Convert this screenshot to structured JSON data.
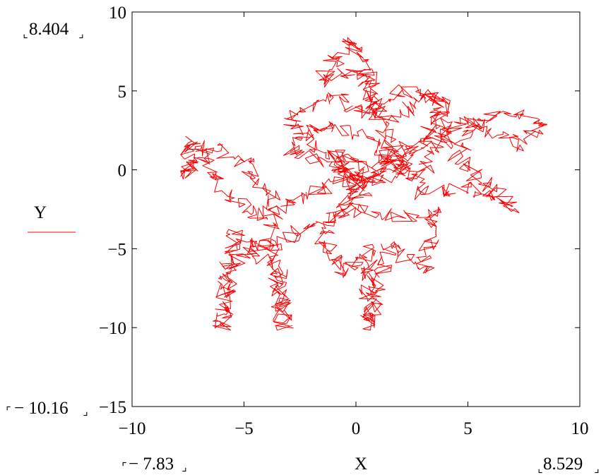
{
  "chart_data": {
    "type": "line",
    "xlabel": "X",
    "ylabel": "Y",
    "xlim": [
      -10,
      10
    ],
    "ylim": [
      -15,
      10
    ],
    "x_ticks": [
      -10,
      -5,
      0,
      5,
      10
    ],
    "y_ticks": [
      -15,
      -10,
      -5,
      0,
      5,
      10
    ],
    "x_tick_labels": [
      "−10",
      "−5",
      "0",
      "5",
      "10"
    ],
    "y_tick_labels": [
      "−15",
      "−10",
      "−5",
      "0",
      "5",
      "10"
    ],
    "x_data_min_label": "− 7.83",
    "x_data_max_label": "8.529",
    "y_data_max_label": "8.404",
    "y_data_min_label": "− 10.16",
    "grid": false,
    "legend": "left",
    "series": [
      {
        "name": "Y",
        "color": "#ff0000",
        "x_range": [
          -7.83,
          8.529
        ],
        "y_range": [
          -10.16,
          8.404
        ],
        "waypoints": [
          [
            0.2,
            -1.0
          ],
          [
            -1.5,
            1.2
          ],
          [
            -3.0,
            3.0
          ],
          [
            -1.0,
            4.8
          ],
          [
            0.5,
            3.5
          ],
          [
            2.0,
            5.0
          ],
          [
            4.0,
            4.3
          ],
          [
            3.2,
            2.0
          ],
          [
            1.0,
            0.5
          ],
          [
            -2.0,
            -1.5
          ],
          [
            -4.5,
            -3.0
          ],
          [
            -6.0,
            -1.0
          ],
          [
            -7.4,
            2.0
          ],
          [
            -7.83,
            -0.5
          ],
          [
            -6.5,
            1.5
          ],
          [
            -5.0,
            0.5
          ],
          [
            -3.5,
            -2.0
          ],
          [
            -4.0,
            -5.0
          ],
          [
            -5.5,
            -4.0
          ],
          [
            -6.0,
            -10.16
          ],
          [
            -5.6,
            -6.0
          ],
          [
            -4.5,
            -5.0
          ],
          [
            -3.5,
            -6.5
          ],
          [
            -3.2,
            -10.0
          ],
          [
            -3.8,
            -5.0
          ],
          [
            -2.0,
            -3.5
          ],
          [
            0.0,
            -2.5
          ],
          [
            2.0,
            -3.0
          ],
          [
            3.5,
            -2.5
          ],
          [
            3.0,
            -6.5
          ],
          [
            1.5,
            -4.5
          ],
          [
            0.5,
            -10.0
          ],
          [
            0.6,
            -5.0
          ],
          [
            -0.5,
            -6.5
          ],
          [
            -1.5,
            -4.5
          ],
          [
            0.0,
            -1.0
          ],
          [
            2.0,
            0.8
          ],
          [
            5.0,
            3.0
          ],
          [
            7.0,
            3.5
          ],
          [
            8.529,
            3.2
          ],
          [
            7.0,
            1.5
          ],
          [
            5.5,
            3.0
          ],
          [
            4.5,
            1.0
          ],
          [
            5.5,
            -0.5
          ],
          [
            7.0,
            -2.5
          ],
          [
            5.0,
            -1.0
          ],
          [
            3.0,
            -1.5
          ],
          [
            1.5,
            1.5
          ],
          [
            -0.3,
            8.404
          ],
          [
            -1.6,
            5.5
          ],
          [
            -1.0,
            6.0
          ],
          [
            0.5,
            6.0
          ],
          [
            1.0,
            3.0
          ],
          [
            3.5,
            4.8
          ],
          [
            4.0,
            2.0
          ],
          [
            3.0,
            0.0
          ],
          [
            1.0,
            -0.8
          ],
          [
            -1.0,
            0.5
          ],
          [
            -3.0,
            1.0
          ],
          [
            -1.5,
            3.0
          ],
          [
            0.5,
            2.0
          ],
          [
            2.0,
            0.0
          ],
          [
            0.0,
            -1.5
          ],
          [
            -1.0,
            1.0
          ],
          [
            0.4,
            0.2
          ]
        ]
      }
    ]
  }
}
